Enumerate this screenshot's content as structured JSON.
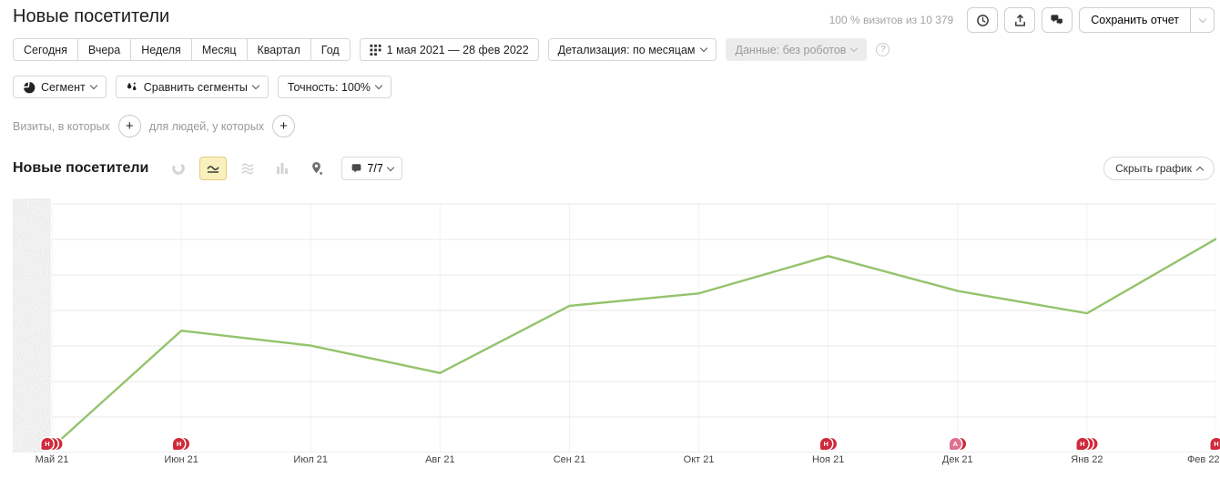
{
  "page_title": "Новые посетители",
  "toolbar": {
    "visits_summary": "100 % визитов из 10 379",
    "save_report": "Сохранить отчет",
    "icons": [
      "history-clock-icon",
      "export-icon",
      "comments-icon",
      "chevron-down-icon"
    ]
  },
  "period_tabs": [
    "Сегодня",
    "Вчера",
    "Неделя",
    "Месяц",
    "Квартал",
    "Год"
  ],
  "date_range": "1 мая 2021 — 28 фев 2022",
  "detalization": "Детализация: по месяцам",
  "data_filter": "Данные: без роботов",
  "help_icon": "?",
  "segments": {
    "segment": "Сегмент",
    "compare": "Сравнить сегменты",
    "accuracy": "Точность: 100%"
  },
  "filters": {
    "visits": "Визиты, в которых",
    "people": "для людей, у которых",
    "add": "+"
  },
  "chart_header": {
    "title": "Новые посетители",
    "comments_count": "7/7",
    "hide_chart": "Скрыть график",
    "type_icons": [
      "donut-chart-icon",
      "line-chart-icon",
      "stacked-area-icon",
      "bar-chart-icon",
      "map-pin-icon"
    ],
    "selected_type": "line-chart-icon"
  },
  "chart_data": {
    "type": "line",
    "title": "Новые посетители",
    "x_labels": [
      "Май 21",
      "Июн 21",
      "Июл 21",
      "Авг 21",
      "Сен 21",
      "Окт 21",
      "Ноя 21",
      "Дек 21",
      "Янв 22",
      "Фев 22"
    ],
    "series": [
      {
        "name": "Новые посетители",
        "values_percent_of_plot_height": [
          2,
          49,
          43,
          32,
          59,
          64,
          79,
          65,
          56,
          86
        ]
      }
    ],
    "y_axis": {
      "labels_redacted_pixelated": true
    },
    "h_gridline_rows": 7,
    "grid_vertical_at_each_month": true,
    "line_color": "#94c36c",
    "annotations": [
      {
        "tick": 0,
        "letter": "Н",
        "extra_count": 2,
        "color": "#cf2a3b"
      },
      {
        "tick": 1,
        "letter": "Н",
        "extra_count": 1,
        "color": "#cf2a3b"
      },
      {
        "tick": 6,
        "letter": "Н",
        "extra_count": 1,
        "color": "#cf2a3b"
      },
      {
        "tick": 7,
        "letter": "А",
        "extra_count": 1,
        "color": "#e0708f"
      },
      {
        "tick": 8,
        "letter": "Н",
        "extra_count": 2,
        "color": "#cf2a3b"
      },
      {
        "tick": 9,
        "letter": "Н",
        "extra_count": 0,
        "color": "#cf2a3b"
      }
    ]
  },
  "colors": {
    "line": "#94c36c",
    "selected_icon_bg": "#f9f0bd",
    "selected_icon_border": "#e3cd7b",
    "badge_red": "#cf2a3b",
    "badge_pink": "#e0708f",
    "gridline": "#e9e9e9"
  }
}
